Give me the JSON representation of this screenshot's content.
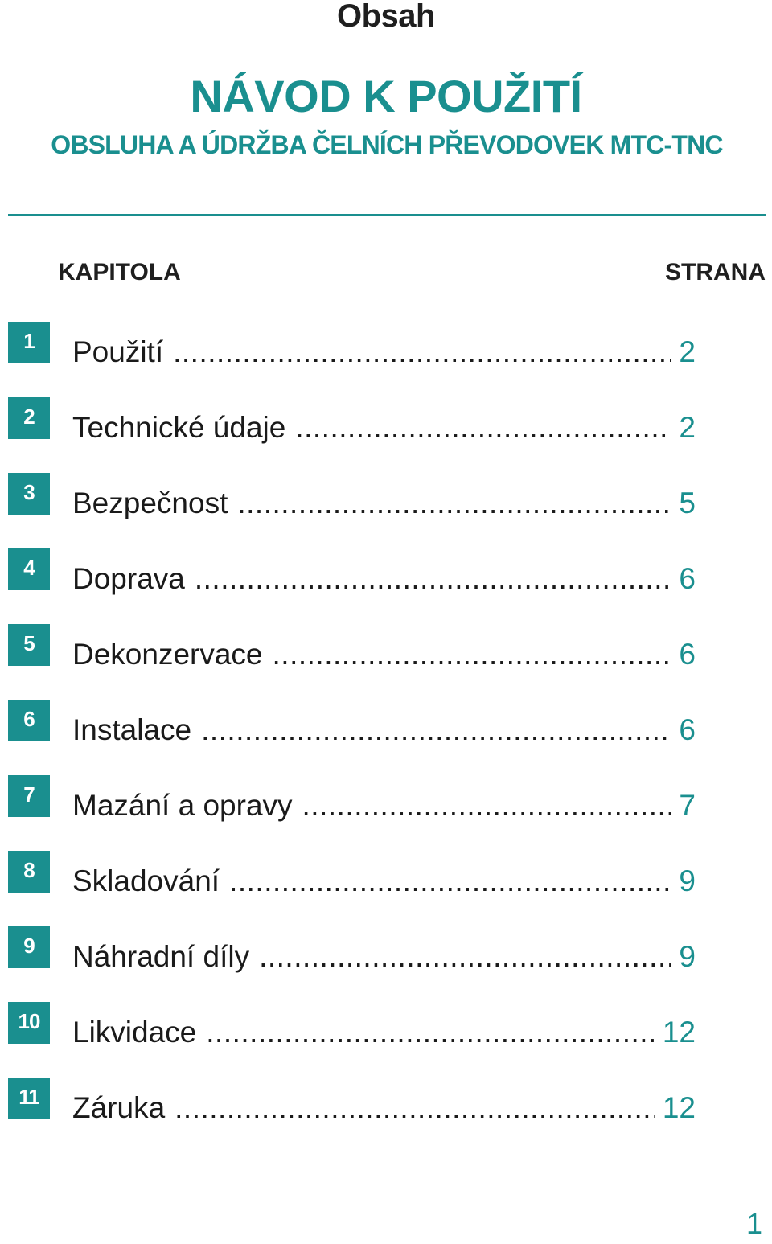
{
  "page_heading": "Obsah",
  "title": "NÁVOD K POUŽITÍ",
  "subtitle": "OBSLUHA A ÚDRŽBA ČELNÍCH PŘEVODOVEK MTC-TNC",
  "columns": {
    "chapter": "KAPITOLA",
    "page": "STRANA"
  },
  "entries": [
    {
      "num": "1",
      "label": "Použití",
      "page": "2"
    },
    {
      "num": "2",
      "label": "Technické údaje",
      "page": "2"
    },
    {
      "num": "3",
      "label": "Bezpečnost",
      "page": "5"
    },
    {
      "num": "4",
      "label": "Doprava",
      "page": "6"
    },
    {
      "num": "5",
      "label": "Dekonzervace",
      "page": "6"
    },
    {
      "num": "6",
      "label": "Instalace",
      "page": "6"
    },
    {
      "num": "7",
      "label": "Mazání a opravy",
      "page": "7"
    },
    {
      "num": "8",
      "label": "Skladování",
      "page": "9"
    },
    {
      "num": "9",
      "label": "Náhradní díly",
      "page": "9"
    },
    {
      "num": "10",
      "label": "Likvidace",
      "page": "12"
    },
    {
      "num": "11",
      "label": "Záruka",
      "page": "12"
    }
  ],
  "page_number": "1",
  "colors": {
    "accent": "#1a8f8f",
    "text": "#1a1a1a"
  }
}
